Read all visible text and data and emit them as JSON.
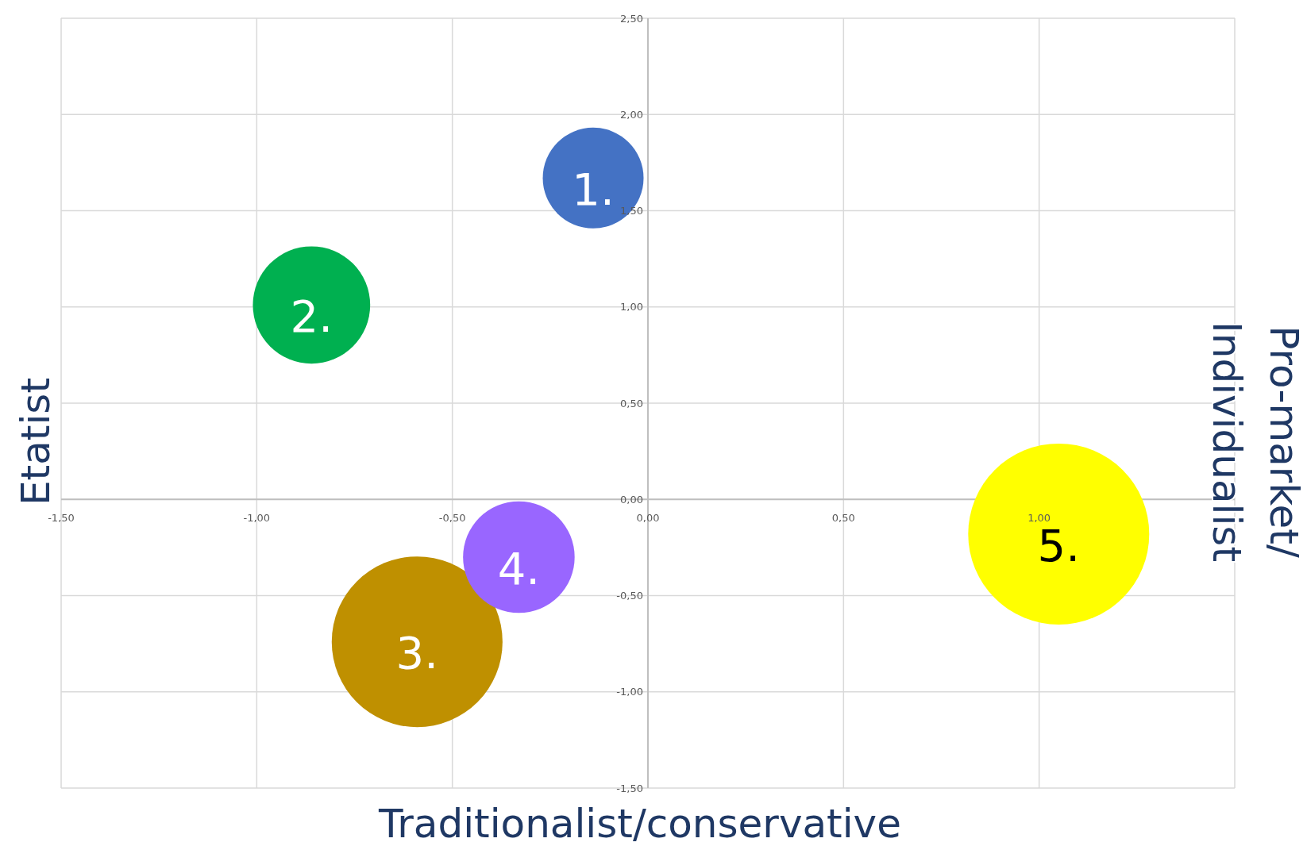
{
  "chart_data": {
    "type": "bubble",
    "xlabel": "Traditionalist/conservative",
    "ylabel": "Etatist",
    "y2label": "Pro-market/\nIndividualist",
    "xlim": [
      -1.5,
      1.5
    ],
    "ylim": [
      -1.5,
      2.5
    ],
    "xticks": [
      {
        "value": -1.5,
        "label": "-1,50"
      },
      {
        "value": -1,
        "label": "-1,00"
      },
      {
        "value": -0.5,
        "label": "-0,50"
      },
      {
        "value": 0,
        "label": "0,00"
      },
      {
        "value": 0.5,
        "label": "0,50"
      },
      {
        "value": 1,
        "label": "1,00"
      },
      {
        "value": 1.5,
        "label": null
      }
    ],
    "yticks": [
      {
        "value": -1.5,
        "label": "-1,50"
      },
      {
        "value": -1,
        "label": "-1,00"
      },
      {
        "value": -0.5,
        "label": "-0,50"
      },
      {
        "value": 0,
        "label": "0,00"
      },
      {
        "value": 0.5,
        "label": "0,50"
      },
      {
        "value": 1,
        "label": "1,00"
      },
      {
        "value": 1.5,
        "label": "1,50"
      },
      {
        "value": 2,
        "label": "2,00"
      },
      {
        "value": 2.5,
        "label": "2,50"
      }
    ],
    "grid": true,
    "series": [
      {
        "name": "1.",
        "color": "#4472c4",
        "x": [
          -0.14
        ],
        "values": [
          1.67
        ],
        "sizes": [
          0.31
        ]
      },
      {
        "name": "2.",
        "color": "#00b050",
        "x": [
          -0.86
        ],
        "values": [
          1.01
        ],
        "sizes": [
          0.42
        ]
      },
      {
        "name": "3.",
        "color": "#bf9000",
        "x": [
          -0.59
        ],
        "values": [
          -0.74
        ],
        "sizes": [
          0.89
        ]
      },
      {
        "name": "4.",
        "color": "#9966ff",
        "x": [
          -0.33
        ],
        "values": [
          -0.3
        ],
        "sizes": [
          0.38
        ]
      },
      {
        "name": "5.",
        "color": "#ffff00",
        "x": [
          1.05
        ],
        "values": [
          -0.18
        ],
        "sizes": [
          1
        ]
      }
    ]
  }
}
